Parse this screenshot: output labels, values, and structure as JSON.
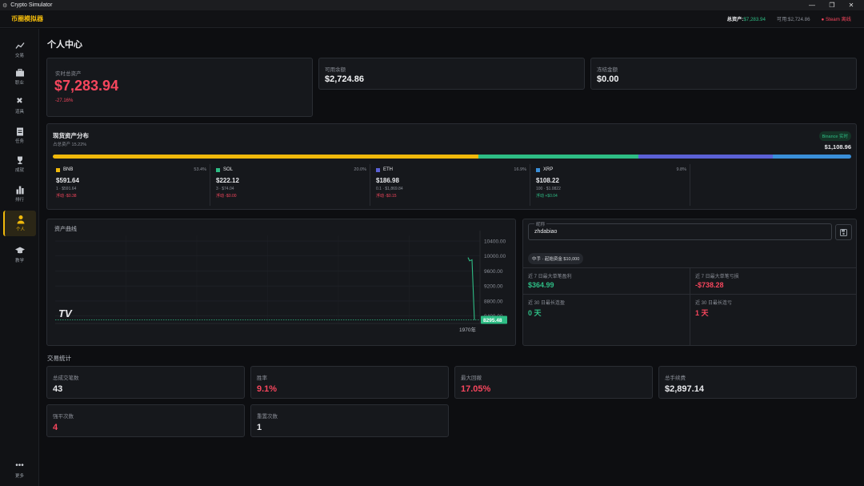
{
  "window": {
    "title": "Crypto Simulator"
  },
  "app": {
    "brand": "币圈模拟器"
  },
  "header": {
    "total_label": "总资产:",
    "total_value": "$7,283.94",
    "avail_label": "可用:",
    "avail_value": "$2,724.86",
    "steam_label": "Steam 离线"
  },
  "sidebar": {
    "items": [
      {
        "label": "交易",
        "icon": "chart-line-icon"
      },
      {
        "label": "职业",
        "icon": "briefcase-icon"
      },
      {
        "label": "道具",
        "icon": "tools-icon"
      },
      {
        "label": "任务",
        "icon": "clipboard-icon"
      },
      {
        "label": "成就",
        "icon": "trophy-icon"
      },
      {
        "label": "排行",
        "icon": "bar-chart-icon"
      },
      {
        "label": "个人",
        "icon": "person-icon"
      },
      {
        "label": "教学",
        "icon": "graduation-cap-icon"
      }
    ],
    "more_label": "更多"
  },
  "page": {
    "title": "个人中心"
  },
  "summary": {
    "total": {
      "label": "实时总资产",
      "value": "$7,283.94",
      "change": "-27.16%"
    },
    "available": {
      "label": "可用余额",
      "value": "$2,724.86"
    },
    "frozen": {
      "label": "冻结金额",
      "value": "$0.00"
    }
  },
  "spot": {
    "title": "现货资产分布",
    "subtitle": "占总资产 15.22%",
    "badge": "Binance 实时",
    "total": "$1,108.96",
    "bar_colors": [
      "#f0b90b",
      "#2ebd85",
      "#5b61d6",
      "#3a8fd9"
    ],
    "bar_fractions": [
      0.534,
      0.2,
      0.169,
      0.098
    ],
    "assets": [
      {
        "symbol": "BNB",
        "pct": "53.4%",
        "value": "$591.64",
        "qty": "1 · $591.64",
        "pnl": "浮动 -$0.38",
        "color": "#f0b90b",
        "pnl_sign": "neg"
      },
      {
        "symbol": "SOL",
        "pct": "20.0%",
        "value": "$222.12",
        "qty": "3 · $74.04",
        "pnl": "浮动 -$0.00",
        "color": "#2ebd85",
        "pnl_sign": "neg"
      },
      {
        "symbol": "ETH",
        "pct": "16.9%",
        "value": "$186.98",
        "qty": "0.1 · $1,869.84",
        "pnl": "浮动 -$0.15",
        "color": "#5b61d6",
        "pnl_sign": "neg"
      },
      {
        "symbol": "XRP",
        "pct": "9.8%",
        "value": "$108.22",
        "qty": "100 · $1.0822",
        "pnl": "浮动 +$0.04",
        "color": "#3a8fd9",
        "pnl_sign": "pos"
      }
    ]
  },
  "curve": {
    "title": "资产曲线",
    "last_value": "8295.48",
    "x_label": "1970年",
    "watermark": "TV"
  },
  "chart_data": {
    "type": "line",
    "title": "资产曲线",
    "xlabel": "",
    "ylabel": "",
    "y_ticks": [
      10400,
      10000,
      9600,
      9200,
      8800,
      8400
    ],
    "ylim": [
      8200,
      10550
    ],
    "x_ticks": [
      "1970年"
    ],
    "series": [
      {
        "values": [
          9960,
          9870,
          9900,
          8295.48
        ]
      }
    ],
    "last_value": 8295.48,
    "grid": true
  },
  "profile": {
    "nickname_legend": "昵称",
    "nickname": "zhdabiao",
    "tag": "中手 · 起始资金 $10,000",
    "metrics": [
      {
        "label": "近 7 日最大单笔盈利",
        "value": "$364.99",
        "tone": "green"
      },
      {
        "label": "近 7 日最大单笔亏损",
        "value": "-$738.28",
        "tone": "red"
      },
      {
        "label": "近 30 日最长连盈",
        "value": "0 天",
        "tone": "green"
      },
      {
        "label": "近 30 日最长连亏",
        "value": "1 天",
        "tone": "red"
      }
    ]
  },
  "trading": {
    "title": "交易统计",
    "stats": [
      {
        "label": "总成交笔数",
        "value": "43",
        "tone": "white"
      },
      {
        "label": "胜率",
        "value": "9.1%",
        "tone": "red"
      },
      {
        "label": "最大回撤",
        "value": "17.05%",
        "tone": "red"
      },
      {
        "label": "总手续费",
        "value": "$2,897.14",
        "tone": "white"
      },
      {
        "label": "强平次数",
        "value": "4",
        "tone": "red"
      },
      {
        "label": "重置次数",
        "value": "1",
        "tone": "white"
      }
    ]
  }
}
